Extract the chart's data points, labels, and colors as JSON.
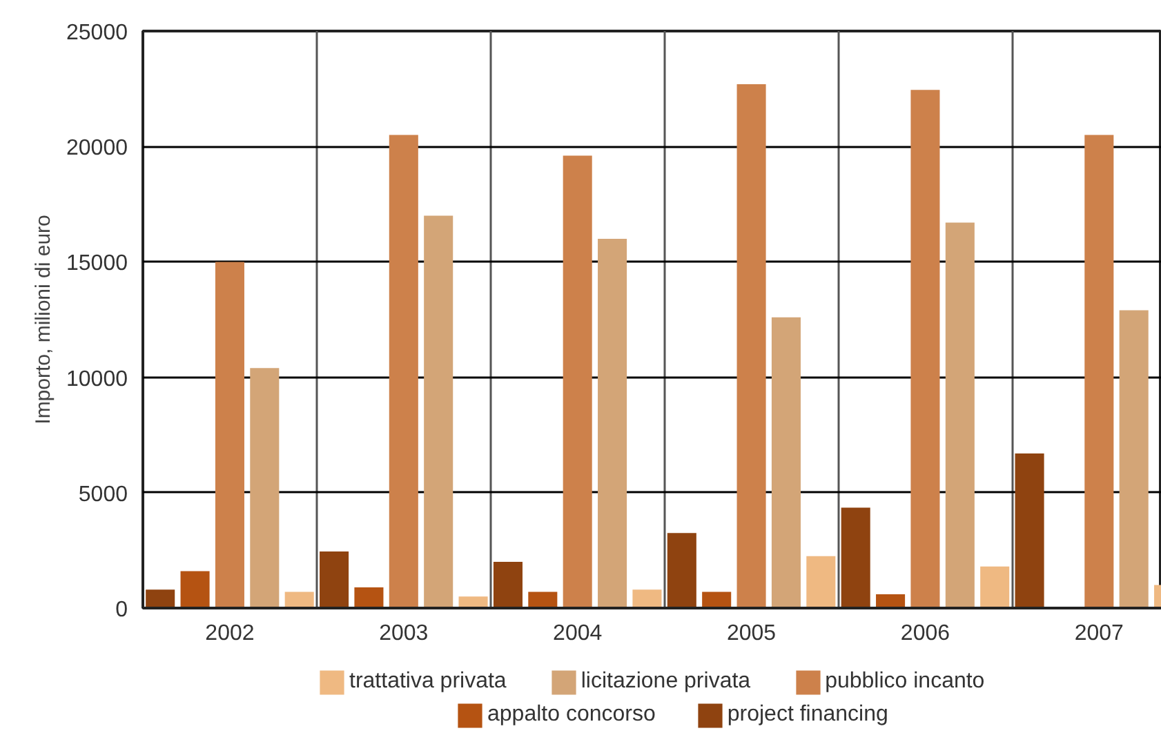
{
  "chart_data": {
    "type": "bar",
    "ylabel": "Importo, milioni di euro",
    "categories": [
      "2002",
      "2003",
      "2004",
      "2005",
      "2006",
      "2007"
    ],
    "series": [
      {
        "name": "project financing",
        "color": "#8f4310",
        "values": [
          800,
          2450,
          2000,
          3250,
          4350,
          6700
        ]
      },
      {
        "name": "appalto concorso",
        "color": "#b55312",
        "values": [
          1600,
          900,
          700,
          700,
          600,
          0
        ]
      },
      {
        "name": "pubblico incanto",
        "color": "#cd814b",
        "values": [
          15000,
          20500,
          19600,
          22700,
          22450,
          20500
        ]
      },
      {
        "name": "licitazione privata",
        "color": "#d3a577",
        "values": [
          10400,
          17000,
          16000,
          12600,
          16700,
          12900
        ]
      },
      {
        "name": "trattativa privata",
        "color": "#efb982",
        "values": [
          700,
          500,
          800,
          2250,
          1800,
          1000
        ]
      }
    ],
    "ylim": [
      0,
      25000
    ],
    "yticks": [
      0,
      5000,
      10000,
      15000,
      20000,
      25000
    ],
    "grid": true,
    "legend": "bottom"
  }
}
